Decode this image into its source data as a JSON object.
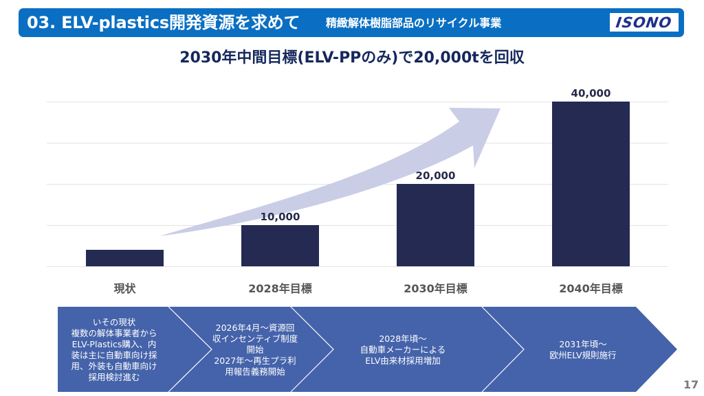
{
  "header": {
    "title": "03. ELV-plastics開発資源を求めて",
    "subtitle": "精緻解体樹脂部品のリサイクル事業",
    "logo_text": "ISONO",
    "banner_color": "#0a6fc2"
  },
  "chart_data": {
    "type": "bar",
    "title": "2030年中間目標(ELV-PPのみ)で20,000tを回収",
    "categories": [
      "現状",
      "2028年目標",
      "2030年目標",
      "2040年目標"
    ],
    "values": [
      4000,
      10000,
      20000,
      40000
    ],
    "data_labels": [
      "",
      "10,000",
      "20,000",
      "40,000"
    ],
    "xlabel": "",
    "ylabel": "",
    "ylim": [
      0,
      40000
    ],
    "gridlines": [
      0,
      10000,
      20000,
      30000,
      40000
    ],
    "grid": true,
    "show_y_axis_ticks": false,
    "legend": "none",
    "bar_color": "#252a52",
    "annotation": "upward-trend-arrow",
    "arrow_color": "#c7cae5"
  },
  "timeline": {
    "fill_color": "#4563aa",
    "steps": [
      {
        "lines": [
          "いその現状",
          "複数の解体事業者から",
          "ELV-Plastics購入、内",
          "装は主に自動車向け採",
          "用、外装も自動車向け",
          "採用検討進む"
        ]
      },
      {
        "lines": [
          "2026年4月～資源回",
          "収インセンティブ制度",
          "開始",
          "2027年～再生プラ利",
          "用報告義務開始"
        ]
      },
      {
        "lines": [
          "2028年頃～",
          "自動車メーカーによる",
          "ELV由来材採用増加"
        ]
      },
      {
        "lines": [
          "2031年頃～",
          "欧州ELV規則施行"
        ]
      }
    ]
  },
  "page_number": "17"
}
